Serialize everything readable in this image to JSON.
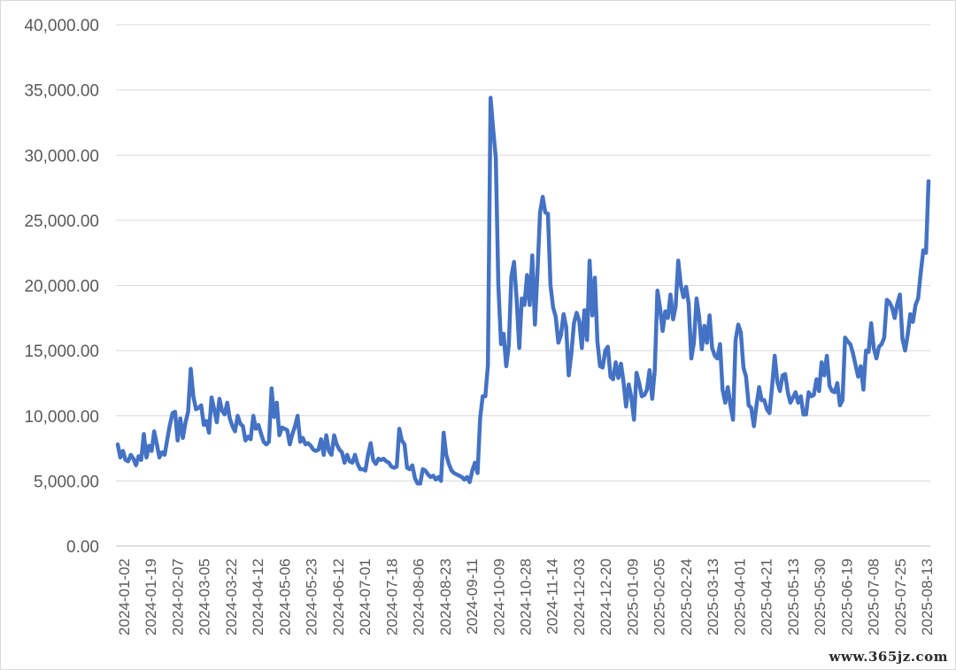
{
  "chart_data": {
    "type": "line",
    "title": "",
    "xlabel": "",
    "ylabel": "",
    "ylim": [
      0,
      40000
    ],
    "y_ticks": [
      "0.00",
      "5,000.00",
      "10,000.00",
      "15,000.00",
      "20,000.00",
      "25,000.00",
      "30,000.00",
      "35,000.00",
      "40,000.00"
    ],
    "y_tick_values": [
      0,
      5000,
      10000,
      15000,
      20000,
      25000,
      30000,
      35000,
      40000
    ],
    "x_tick_labels": [
      "2024-01-02",
      "2024-01-19",
      "2024-02-07",
      "2024-03-05",
      "2024-03-22",
      "2024-04-12",
      "2024-05-06",
      "2024-05-23",
      "2024-06-12",
      "2024-07-01",
      "2024-07-18",
      "2024-08-06",
      "2024-08-23",
      "2024-09-11",
      "2024-10-09",
      "2024-10-28",
      "2024-11-14",
      "2024-12-03",
      "2024-12-20",
      "2025-01-09",
      "2025-02-05",
      "2025-02-24",
      "2025-03-13",
      "2025-04-01",
      "2025-04-21",
      "2025-05-13",
      "2025-05-30",
      "2025-06-19",
      "2025-07-08",
      "2025-07-25",
      "2025-08-13"
    ],
    "grid": true,
    "legend": "none",
    "line_color": "#4472c4",
    "series": [
      {
        "values": [
          7800,
          6800,
          7300,
          6600,
          6500,
          7000,
          6700,
          6200,
          6900,
          6600,
          8600,
          6800,
          7700,
          7300,
          8800,
          7800,
          6800,
          7200,
          7000,
          8200,
          9300,
          10200,
          10300,
          8100,
          9800,
          8300,
          9500,
          10300,
          13600,
          11500,
          10500,
          10600,
          10800,
          9300,
          9600,
          8700,
          11400,
          10500,
          9500,
          11300,
          10400,
          10100,
          11000,
          9800,
          9200,
          8800,
          10000,
          9400,
          9200,
          8100,
          8400,
          8200,
          10000,
          9000,
          9300,
          8600,
          8000,
          7800,
          8000,
          12100,
          9900,
          11000,
          8500,
          9100,
          9000,
          8900,
          7800,
          8600,
          9200,
          10000,
          8000,
          8300,
          7800,
          7900,
          7700,
          7400,
          7300,
          7400,
          8200,
          7000,
          8500,
          7300,
          7000,
          8500,
          7800,
          7400,
          7200,
          6400,
          7000,
          6500,
          6400,
          7000,
          6300,
          5900,
          5900,
          5800,
          7000,
          7900,
          6600,
          6300,
          6700,
          6600,
          6700,
          6500,
          6400,
          6100,
          6000,
          6100,
          9000,
          8100,
          7800,
          6000,
          5900,
          6200,
          5200,
          4800,
          4800,
          5900,
          5800,
          5500,
          5300,
          5400,
          5100,
          5300,
          5000,
          8700,
          7000,
          6300,
          5800,
          5600,
          5500,
          5400,
          5300,
          5100,
          5300,
          4900,
          5800,
          6400,
          5600,
          9800,
          11500,
          11500,
          13900,
          34400,
          32000,
          29800,
          20000,
          15500,
          16300,
          13800,
          15400,
          20700,
          21800,
          19000,
          15200,
          19000,
          18500,
          20800,
          18500,
          22300,
          17000,
          21000,
          25600,
          26800,
          25600,
          25500,
          20000,
          18300,
          17600,
          15600,
          16200,
          17800,
          16800,
          13100,
          14800,
          17100,
          17900,
          17300,
          15200,
          18100,
          15800,
          21900,
          17700,
          20600,
          15700,
          13800,
          13700,
          15000,
          15300,
          13000,
          12800,
          14100,
          12900,
          14000,
          12600,
          10700,
          12400,
          11400,
          9700,
          13300,
          12500,
          11500,
          11600,
          12000,
          13500,
          11300,
          13500,
          19600,
          18300,
          16500,
          18000,
          17500,
          19300,
          17400,
          18400,
          21900,
          20000,
          19100,
          19900,
          18600,
          14400,
          15600,
          19000,
          17600,
          15100,
          16900,
          15600,
          17700,
          15200,
          14600,
          14400,
          15500,
          12000,
          11000,
          12200,
          10800,
          9700,
          15800,
          17000,
          16400,
          13700,
          13000,
          10800,
          10600,
          9200,
          10800,
          12200,
          11200,
          11200,
          10500,
          10200,
          12300,
          14600,
          12600,
          11900,
          13100,
          13200,
          11800,
          11000,
          11400,
          11800,
          11000,
          11500,
          10100,
          10100,
          11800,
          11500,
          11600,
          12800,
          11900,
          14100,
          13100,
          14600,
          12300,
          11900,
          11800,
          12500,
          10800,
          11200,
          16000,
          15700,
          15500,
          14800,
          13900,
          13000,
          13800,
          12000,
          15000,
          14900,
          17100,
          15200,
          14400,
          15300,
          15500,
          16000,
          18900,
          18700,
          18300,
          17500,
          18600,
          19300,
          15900,
          15000,
          16200,
          17800,
          17200,
          18500,
          19000,
          21000,
          22700,
          22500,
          28000
        ]
      }
    ]
  },
  "watermark": "www.365jz.com"
}
